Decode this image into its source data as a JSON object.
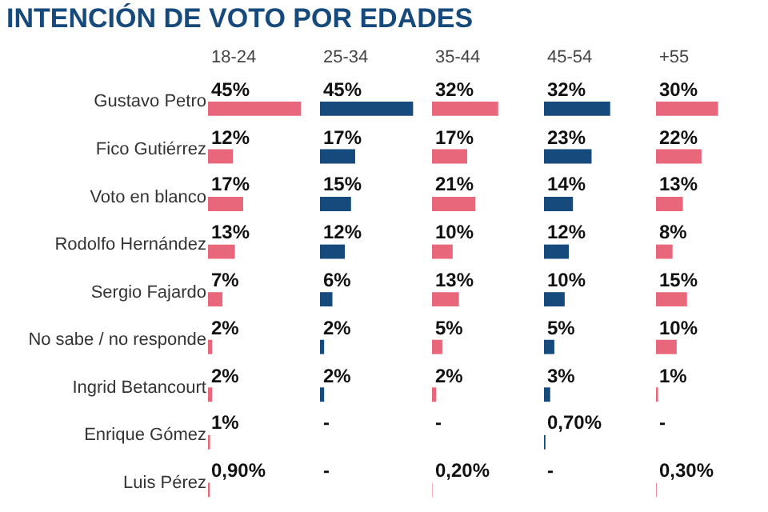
{
  "chart_data": [
    {
      "type": "bar",
      "orientation": "horizontal",
      "title": "INTENCIÓN DE VOTO POR EDADES",
      "subtitle": "18-24",
      "tick_labels": "y",
      "categories": [
        "Gustavo Petro",
        "Fico Gutiérrez",
        "Voto en blanco",
        "Rodolfo Hernández",
        "Sergio Fajardo",
        "No sabe / no responde",
        "Ingrid Betancourt",
        "Enrique Gómez",
        "Luis Pérez"
      ],
      "color": "#e8677b",
      "values": [
        45,
        12,
        17,
        13,
        7,
        2,
        2,
        1,
        0.9
      ],
      "value_labels": [
        "45%",
        "12%",
        "17%",
        "13%",
        "7%",
        "2%",
        "2%",
        "1%",
        "0,90%"
      ]
    },
    {
      "type": "bar",
      "orientation": "horizontal",
      "title": "25-34",
      "tick_labels": false,
      "categories": [
        null,
        null,
        null,
        null,
        null,
        null,
        null,
        null,
        null
      ],
      "color": "#174a7c",
      "values": [
        45,
        17,
        15,
        12,
        6,
        2,
        2,
        null,
        null
      ],
      "value_labels": [
        "45%",
        "17%",
        "15%",
        "12%",
        "6%",
        "2%",
        "2%",
        "-",
        "-"
      ]
    },
    {
      "type": "bar",
      "orientation": "horizontal",
      "title": "35-44",
      "tick_labels": false,
      "categories": [
        null,
        null,
        null,
        null,
        null,
        null,
        null,
        null,
        null
      ],
      "color": "#e8677b",
      "values": [
        32,
        17,
        21,
        10,
        13,
        5,
        2,
        null,
        0.2
      ],
      "value_labels": [
        "32%",
        "17%",
        "21%",
        "10%",
        "13%",
        "5%",
        "2%",
        "-",
        "0,20%"
      ]
    },
    {
      "type": "bar",
      "orientation": "horizontal",
      "title": "45-54",
      "tick_labels": false,
      "categories": [
        null,
        null,
        null,
        null,
        null,
        null,
        null,
        null,
        null
      ],
      "color": "#174a7c",
      "values": [
        32,
        23,
        14,
        12,
        10,
        5,
        3,
        0.7,
        null
      ],
      "value_labels": [
        "32%",
        "23%",
        "14%",
        "12%",
        "10%",
        "5%",
        "3%",
        "0,70%",
        "-"
      ]
    },
    {
      "type": "bar",
      "orientation": "horizontal",
      "title": "+55",
      "tick_labels": false,
      "categories": [
        null,
        null,
        null,
        null,
        null,
        null,
        null,
        null,
        null
      ],
      "color": "#e8677b",
      "values": [
        30,
        22,
        13,
        8,
        15,
        10,
        1,
        null,
        0.3
      ],
      "value_labels": [
        "30%",
        "22%",
        "13%",
        "8%",
        "15%",
        "10%",
        "1%",
        "-",
        "0,30%"
      ]
    }
  ]
}
